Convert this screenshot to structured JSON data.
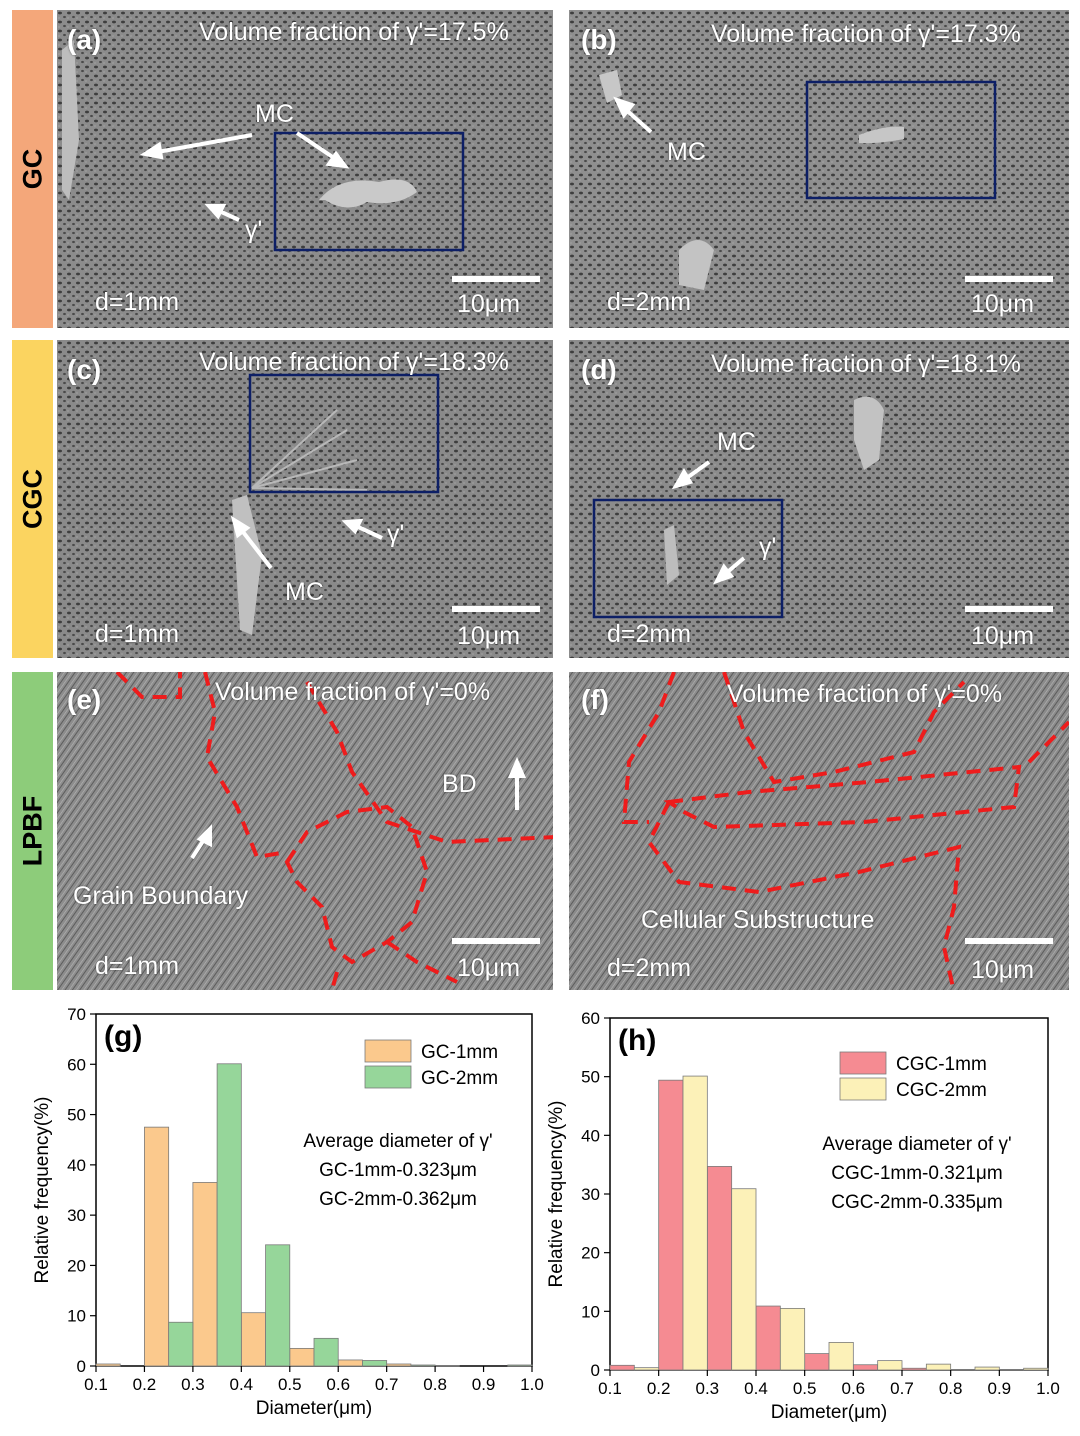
{
  "rows": [
    {
      "label": "GC",
      "color": "#f4a77a"
    },
    {
      "label": "CGC",
      "color": "#fbd460"
    },
    {
      "label": "LPBF",
      "color": "#8dcc7a"
    }
  ],
  "panels": [
    {
      "id": "(a)",
      "vf": "Volume fraction of γ'=17.5%",
      "d": "d=1mm",
      "scale": "10μm",
      "mc": "MC",
      "gamma": "γ'"
    },
    {
      "id": "(b)",
      "vf": "Volume fraction of γ'=17.3%",
      "d": "d=2mm",
      "scale": "10μm",
      "mc": "MC"
    },
    {
      "id": "(c)",
      "vf": "Volume fraction of γ'=18.3%",
      "d": "d=1mm",
      "scale": "10μm",
      "mc": "MC",
      "gamma": "γ'"
    },
    {
      "id": "(d)",
      "vf": "Volume fraction of γ'=18.1%",
      "d": "d=2mm",
      "scale": "10μm",
      "mc": "MC",
      "gamma": "γ'"
    },
    {
      "id": "(e)",
      "vf": "Volume fraction of γ'=0%",
      "d": "d=1mm",
      "scale": "10μm",
      "bd": "BD",
      "note": "Grain Boundary"
    },
    {
      "id": "(f)",
      "vf": "Volume fraction of γ'=0%",
      "d": "d=2mm",
      "scale": "10μm",
      "note": "Cellular Substructure"
    }
  ],
  "colors": {
    "micrograph": "#8a8a8a",
    "boundary": "#ee1c1c",
    "box": "#0d1f66"
  },
  "chart_data": [
    {
      "type": "bar",
      "panel_label": "(g)",
      "xlabel": "Diameter(μm)",
      "ylabel": "Relative frequency(%)",
      "xlim": [
        0.1,
        1.0
      ],
      "ylim": [
        0,
        70
      ],
      "xticks": [
        "0.1",
        "0.2",
        "0.3",
        "0.4",
        "0.5",
        "0.6",
        "0.7",
        "0.8",
        "0.9",
        "1.0"
      ],
      "yticks": [
        "0",
        "10",
        "20",
        "30",
        "40",
        "50",
        "60",
        "70"
      ],
      "bins": [
        0.1,
        0.2,
        0.3,
        0.4,
        0.5,
        0.6,
        0.7,
        0.8,
        0.9
      ],
      "series": [
        {
          "name": "GC-1mm",
          "color": "#fbc98d",
          "values": [
            0.4,
            47.5,
            36.5,
            10.6,
            3.5,
            1.2,
            0.4,
            0.1,
            0.0
          ]
        },
        {
          "name": "GC-2mm",
          "color": "#96d69a",
          "values": [
            0.0,
            8.7,
            60.1,
            24.1,
            5.5,
            1.1,
            0.2,
            0.0,
            0.2
          ]
        }
      ],
      "annotation": [
        "Average diameter of γ'",
        "GC-1mm-0.323μm",
        "GC-2mm-0.362μm"
      ],
      "legend_position": "top-right"
    },
    {
      "type": "bar",
      "panel_label": "(h)",
      "xlabel": "Diameter(μm)",
      "ylabel": "Relative frequency(%)",
      "xlim": [
        0.1,
        1.0
      ],
      "ylim": [
        0,
        60
      ],
      "xticks": [
        "0.1",
        "0.2",
        "0.3",
        "0.4",
        "0.5",
        "0.6",
        "0.7",
        "0.8",
        "0.9",
        "1.0"
      ],
      "yticks": [
        "0",
        "10",
        "20",
        "30",
        "40",
        "50",
        "60"
      ],
      "bins": [
        0.1,
        0.2,
        0.3,
        0.4,
        0.5,
        0.6,
        0.7,
        0.8,
        0.9
      ],
      "series": [
        {
          "name": "CGC-1mm",
          "color": "#f58b92",
          "values": [
            0.8,
            49.4,
            34.7,
            10.9,
            2.8,
            0.9,
            0.3,
            0.1,
            0.1
          ]
        },
        {
          "name": "CGC-2mm",
          "color": "#fcf1b8",
          "values": [
            0.4,
            50.1,
            30.9,
            10.5,
            4.7,
            1.6,
            1.0,
            0.5,
            0.3
          ]
        }
      ],
      "annotation": [
        "Average diameter of γ'",
        "CGC-1mm-0.321μm",
        "CGC-2mm-0.335μm"
      ],
      "legend_position": "top-right"
    }
  ]
}
